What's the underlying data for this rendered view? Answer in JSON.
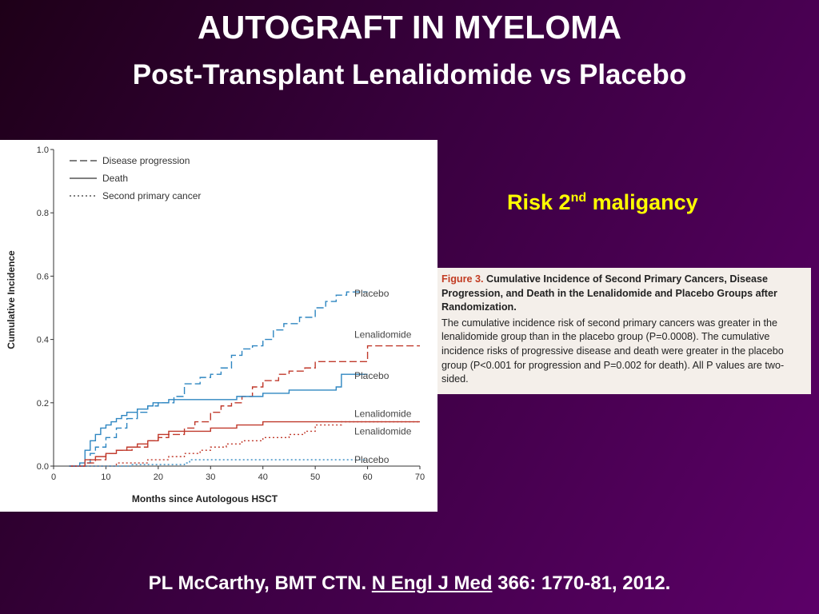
{
  "slide": {
    "title": "AUTOGRAFT IN MYELOMA",
    "subtitle": "Post-Transplant Lenalidomide vs Placebo",
    "risk_label_main": "Risk 2",
    "risk_label_sup": "nd",
    "risk_label_rest": " maligancy",
    "citation_pre": "PL McCarthy, BMT CTN. ",
    "citation_journal": "N Engl J Med",
    "citation_post": " 366: 1770-81, 2012."
  },
  "caption": {
    "figure_number": "Figure 3.",
    "figure_title": " Cumulative Incidence of Second Primary Cancers, Disease Progression, and Death in the Lenalidomide and Placebo Groups after Randomization.",
    "body": "The cumulative incidence risk of second primary cancers was greater in the lenalidomide group than in the placebo group (P=0.0008). The cumulative incidence risks of progressive disease and death were greater in the placebo group (P<0.001 for progression and P=0.002 for death). All P values are two-sided."
  },
  "colors": {
    "placebo": "#2e86c1",
    "lenalidomide": "#c0392b",
    "axis": "#333333"
  },
  "chart_data": {
    "type": "line",
    "xlabel": "Months since Autologous HSCT",
    "ylabel": "Cumulative Incidence",
    "xlim": [
      0,
      70
    ],
    "ylim": [
      0,
      1.0
    ],
    "x_ticks": [
      0,
      10,
      20,
      30,
      40,
      50,
      60,
      70
    ],
    "y_ticks": [
      0.0,
      0.2,
      0.4,
      0.6,
      0.8,
      1.0
    ],
    "y_tick_labels": [
      "0.0",
      "0.2",
      "0.4",
      "0.6",
      "0.8",
      "1.0"
    ],
    "legend": [
      {
        "label": "Disease progression",
        "style": "dashed"
      },
      {
        "label": "Death",
        "style": "solid"
      },
      {
        "label": "Second primary cancer",
        "style": "dotted"
      }
    ],
    "series": [
      {
        "name": "Placebo",
        "outcome": "Disease progression",
        "color": "placebo",
        "style": "dashed",
        "x": [
          3,
          6,
          7,
          8,
          10,
          12,
          14,
          16,
          18,
          20,
          23,
          25,
          28,
          30,
          32,
          34,
          36,
          38,
          40,
          42,
          44,
          47,
          50,
          52,
          54,
          56,
          57,
          60
        ],
        "y": [
          0.0,
          0.01,
          0.04,
          0.06,
          0.09,
          0.12,
          0.15,
          0.17,
          0.19,
          0.2,
          0.22,
          0.26,
          0.28,
          0.29,
          0.31,
          0.35,
          0.37,
          0.38,
          0.4,
          0.43,
          0.45,
          0.47,
          0.5,
          0.52,
          0.54,
          0.55,
          0.55,
          0.55
        ],
        "end_label": "Placebo"
      },
      {
        "name": "Lenalidomide",
        "outcome": "Disease progression",
        "color": "lenalidomide",
        "style": "dashed",
        "x": [
          3,
          6,
          8,
          10,
          12,
          15,
          18,
          20,
          22,
          25,
          27,
          30,
          32,
          34,
          36,
          38,
          40,
          43,
          45,
          48,
          50,
          55,
          59,
          60,
          62,
          70
        ],
        "y": [
          0.0,
          0.01,
          0.02,
          0.04,
          0.05,
          0.06,
          0.08,
          0.09,
          0.1,
          0.12,
          0.14,
          0.17,
          0.19,
          0.2,
          0.22,
          0.25,
          0.27,
          0.29,
          0.3,
          0.31,
          0.33,
          0.33,
          0.33,
          0.38,
          0.38,
          0.38
        ],
        "end_label": "Lenalidomide"
      },
      {
        "name": "Placebo",
        "outcome": "Death",
        "color": "placebo",
        "style": "solid",
        "x": [
          3,
          5,
          6,
          7,
          8,
          9,
          10,
          11,
          12,
          13,
          14,
          16,
          18,
          19,
          20,
          22,
          25,
          30,
          35,
          40,
          45,
          50,
          54,
          55,
          56,
          60
        ],
        "y": [
          0.0,
          0.01,
          0.05,
          0.08,
          0.1,
          0.12,
          0.13,
          0.14,
          0.15,
          0.16,
          0.17,
          0.18,
          0.19,
          0.2,
          0.2,
          0.21,
          0.21,
          0.21,
          0.22,
          0.23,
          0.24,
          0.24,
          0.25,
          0.29,
          0.29,
          0.29
        ],
        "end_label": "Placebo"
      },
      {
        "name": "Lenalidomide",
        "outcome": "Death",
        "color": "lenalidomide",
        "style": "solid",
        "x": [
          3,
          6,
          8,
          10,
          12,
          14,
          16,
          18,
          20,
          22,
          25,
          28,
          30,
          33,
          35,
          37,
          40,
          45,
          50,
          55,
          60,
          70
        ],
        "y": [
          0.0,
          0.02,
          0.03,
          0.04,
          0.05,
          0.06,
          0.07,
          0.08,
          0.1,
          0.11,
          0.11,
          0.11,
          0.12,
          0.12,
          0.13,
          0.13,
          0.14,
          0.14,
          0.14,
          0.14,
          0.14,
          0.14
        ],
        "end_label": "Lenalidomide"
      },
      {
        "name": "Lenalidomide",
        "outcome": "Second primary cancer",
        "color": "lenalidomide",
        "style": "dotted",
        "x": [
          3,
          8,
          12,
          15,
          18,
          20,
          22,
          25,
          28,
          30,
          33,
          36,
          40,
          43,
          45,
          48,
          50,
          55,
          60,
          70
        ],
        "y": [
          0.0,
          0.0,
          0.01,
          0.01,
          0.02,
          0.02,
          0.03,
          0.04,
          0.05,
          0.06,
          0.07,
          0.08,
          0.09,
          0.09,
          0.1,
          0.11,
          0.13,
          0.14,
          0.14,
          0.14
        ],
        "end_label": "Lenalidomide"
      },
      {
        "name": "Placebo",
        "outcome": "Second primary cancer",
        "color": "placebo",
        "style": "dotted",
        "x": [
          3,
          10,
          15,
          20,
          25,
          26,
          30,
          35,
          40,
          45,
          50,
          55,
          60
        ],
        "y": [
          0.0,
          0.0,
          0.005,
          0.005,
          0.01,
          0.02,
          0.02,
          0.02,
          0.02,
          0.02,
          0.02,
          0.02,
          0.02
        ],
        "end_label": "Placebo"
      }
    ]
  }
}
